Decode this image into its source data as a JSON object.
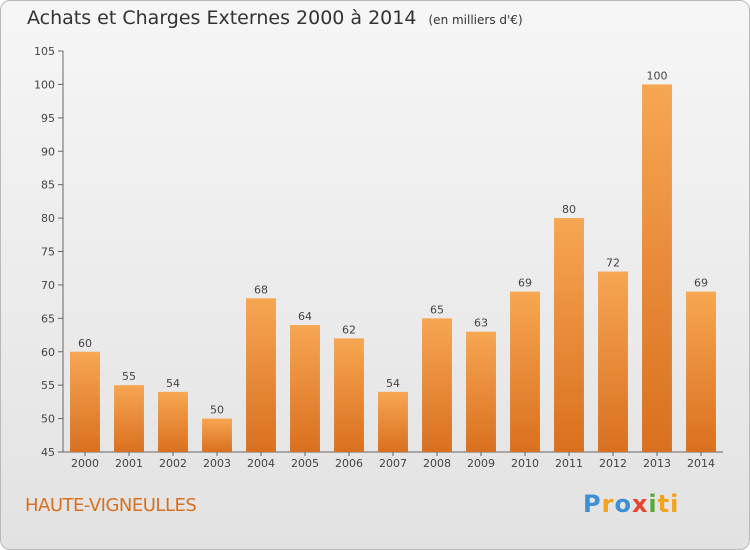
{
  "chart_data": {
    "type": "bar",
    "title": "Achats et Charges Externes 2000 à 2014",
    "subtitle": "(en milliers d'€)",
    "categories": [
      "2000",
      "2001",
      "2002",
      "2003",
      "2004",
      "2005",
      "2006",
      "2007",
      "2008",
      "2009",
      "2010",
      "2011",
      "2012",
      "2013",
      "2014"
    ],
    "values": [
      60,
      55,
      54,
      50,
      68,
      64,
      62,
      54,
      65,
      63,
      69,
      80,
      72,
      100,
      69
    ],
    "ylim": [
      45,
      105
    ],
    "yticks": [
      45,
      50,
      55,
      60,
      65,
      70,
      75,
      80,
      85,
      90,
      95,
      100,
      105
    ],
    "grid": false,
    "colors": {
      "bar_light": "#f7a652",
      "bar_dark": "#d9701f",
      "axis": "#666666"
    }
  },
  "footer": {
    "commune": "HAUTE-VIGNEULLES",
    "logo_letters": [
      "P",
      "r",
      "o",
      "x",
      "i",
      "ti"
    ]
  }
}
